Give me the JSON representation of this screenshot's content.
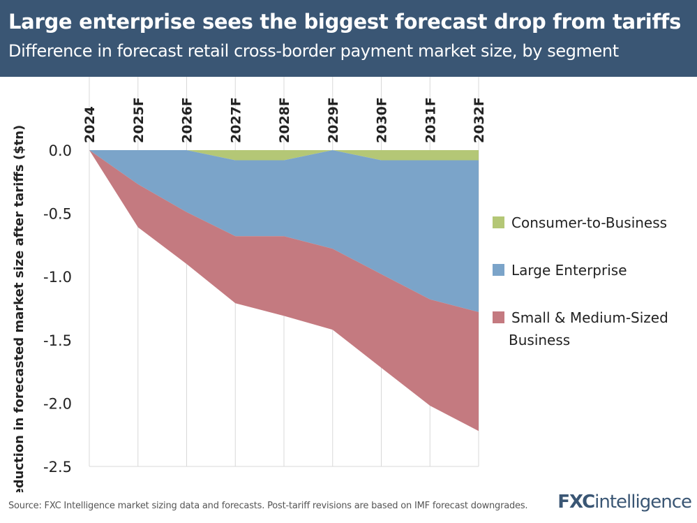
{
  "header": {
    "title": "Large enterprise sees the biggest forecast drop from tariffs",
    "subtitle": "Difference in forecast retail cross-border payment market size, by segment"
  },
  "footer": {
    "source": "Source: FXC Intelligence market sizing data and forecasts. Post-tariff revisions are based on IMF forecast downgrades.",
    "brand_bold": "FXC",
    "brand_thin": "intelligence"
  },
  "chart_data": {
    "type": "area",
    "stacked": true,
    "ylabel": "Reduction in forecasted market size after tariffs ($tn)",
    "xlabel": "",
    "categories": [
      "2024",
      "2025F",
      "2026F",
      "2027F",
      "2028F",
      "2029F",
      "2030F",
      "2031F",
      "2032F"
    ],
    "ylim": [
      -2.5,
      0
    ],
    "yticks": [
      0,
      -0.5,
      -1,
      -1.5,
      -2,
      -2.5
    ],
    "ytick_labels": [
      "0.0",
      "-0.5",
      "-1.0",
      "-1.5",
      "-2.0",
      "-2.5"
    ],
    "legend_position": "right",
    "series": [
      {
        "name": "Consumer-to-Business",
        "color": "#b4c776",
        "values": [
          0,
          0,
          0,
          -0.08,
          -0.08,
          0,
          -0.08,
          -0.08,
          -0.08
        ]
      },
      {
        "name": "Large Enterprise",
        "color": "#7ba4c9",
        "values": [
          0,
          -0.27,
          -0.49,
          -0.6,
          -0.6,
          -0.78,
          -0.9,
          -1.1,
          -1.2
        ]
      },
      {
        "name": "Small & Medium-Sized Business",
        "legend_lines": [
          "Small & Medium-Sized",
          "Business"
        ],
        "color": "#c47a80",
        "values": [
          0,
          -0.34,
          -0.41,
          -0.53,
          -0.63,
          -0.64,
          -0.74,
          -0.84,
          -0.94
        ]
      }
    ]
  }
}
